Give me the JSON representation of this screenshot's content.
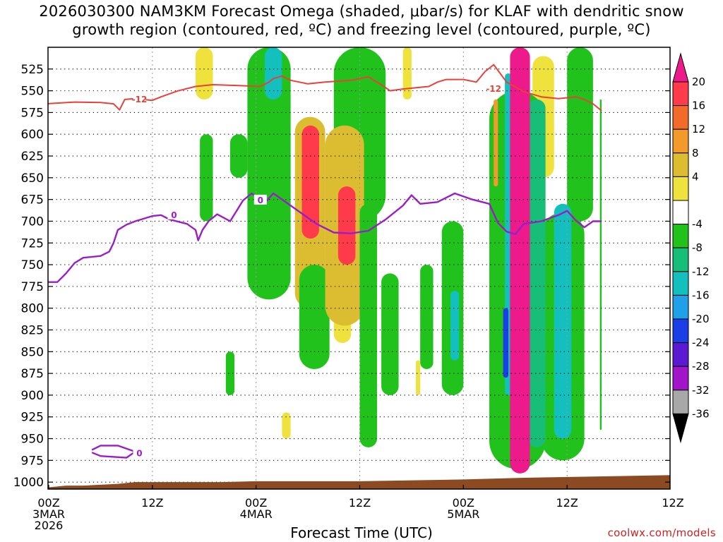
{
  "title_line1": "2026030300 NAM3KM Forecast Omega (shaded, μbar/s) for KLAF with dendritic snow",
  "title_line2": "growth region (contoured, red, ºC) and freezing level (contoured, purple, ºC)",
  "xaxis_title": "Forecast Time (UTC)",
  "credit": "coolwx.com/models",
  "colors": {
    "snow_growth": "#e8413a",
    "freezing": "#9a1ec8",
    "ground": "#8b4a22"
  },
  "chart_data": {
    "type": "heatmap",
    "y_pressure_levels": [
      525,
      550,
      575,
      600,
      625,
      650,
      675,
      700,
      725,
      750,
      775,
      800,
      825,
      850,
      875,
      900,
      925,
      950,
      975,
      1000
    ],
    "y_tick_labels": [
      "525",
      "550",
      "575",
      "600",
      "625",
      "650",
      "675",
      "700",
      "725",
      "750",
      "775",
      "800",
      "825",
      "850",
      "875",
      "900",
      "925",
      "950",
      "975",
      "1000"
    ],
    "ylim_hpa": [
      500,
      1008
    ],
    "x_forecast_hours_range": [
      0,
      72
    ],
    "x_ticks": [
      {
        "hour": 0,
        "l1": "00Z",
        "l2": "3MAR",
        "l3": "2026"
      },
      {
        "hour": 12,
        "l1": "12Z",
        "l2": "",
        "l3": ""
      },
      {
        "hour": 24,
        "l1": "00Z",
        "l2": "4MAR",
        "l3": ""
      },
      {
        "hour": 36,
        "l1": "12Z",
        "l2": "",
        "l3": ""
      },
      {
        "hour": 48,
        "l1": "00Z",
        "l2": "5MAR",
        "l3": ""
      },
      {
        "hour": 60,
        "l1": "12Z",
        "l2": "",
        "l3": ""
      }
    ],
    "colorbar": {
      "labels": [
        "20",
        "16",
        "12",
        "8",
        "4",
        "-4",
        "-8",
        "-12",
        "-16",
        "-20",
        "-24",
        "-28",
        "-32",
        "-36"
      ],
      "bins": [
        {
          "range": "16 to 20",
          "color": "#ff3a4a"
        },
        {
          "range": "12 to 16",
          "color": "#f26b2a"
        },
        {
          "range": "8 to 12",
          "color": "#f39a2c"
        },
        {
          "range": "4 to 8",
          "color": "#dcbc30"
        },
        {
          "range": "0 to 4",
          "color": "#f0e23c"
        },
        {
          "range": "-4 to 4",
          "color": "#ffffff"
        },
        {
          "range": "-8 to -4",
          "color": "#22c21c"
        },
        {
          "range": "-12 to -8",
          "color": "#16be78"
        },
        {
          "range": "-16 to -12",
          "color": "#13c0bd"
        },
        {
          "range": "-20 to -16",
          "color": "#1fa0e8"
        },
        {
          "range": "-24 to -20",
          "color": "#1b3fe6"
        },
        {
          "range": "-28 to -24",
          "color": "#5b1ad2"
        },
        {
          "range": "-32 to -28",
          "color": "#a015c8"
        },
        {
          "range": "-36 to -32",
          "color": "#a8a8a8"
        }
      ],
      "top_extension_color": "#ec1a8a",
      "bottom_extension_color": "#000000"
    },
    "contour_labels": {
      "snow_growth": "-12",
      "freezing": "0"
    },
    "snow_growth_contour": [
      [
        -0.3,
        565
      ],
      [
        3,
        563
      ],
      [
        6,
        563.5
      ],
      [
        7.5,
        565
      ],
      [
        8.2,
        572
      ],
      [
        8.8,
        560
      ],
      [
        10,
        559
      ],
      [
        12,
        561
      ],
      [
        13,
        557
      ],
      [
        15,
        550
      ],
      [
        17,
        545
      ],
      [
        19,
        543
      ],
      [
        22,
        544
      ],
      [
        24.5,
        545
      ],
      [
        25.5,
        540
      ],
      [
        26,
        536
      ],
      [
        27,
        533
      ],
      [
        28,
        538
      ],
      [
        30,
        542
      ],
      [
        32,
        540
      ],
      [
        35,
        538
      ],
      [
        37,
        534
      ],
      [
        38.5,
        543
      ],
      [
        39.5,
        550
      ],
      [
        41,
        548
      ],
      [
        44,
        545
      ],
      [
        45,
        540
      ],
      [
        46,
        537
      ],
      [
        48,
        537
      ],
      [
        49.5,
        540
      ],
      [
        50.5,
        528
      ],
      [
        51.5,
        520
      ],
      [
        53,
        540
      ],
      [
        55,
        551
      ],
      [
        57,
        557
      ],
      [
        59,
        559
      ],
      [
        61,
        557
      ],
      [
        62,
        560
      ],
      [
        63,
        565
      ],
      [
        64,
        573
      ]
    ],
    "freezing_contour": [
      [
        -0.3,
        770
      ],
      [
        1,
        770
      ],
      [
        2,
        760
      ],
      [
        3,
        748
      ],
      [
        4,
        742
      ],
      [
        6,
        740
      ],
      [
        7,
        735
      ],
      [
        7.5,
        725
      ],
      [
        8,
        710
      ],
      [
        9,
        704
      ],
      [
        10,
        700
      ],
      [
        12,
        694
      ],
      [
        13,
        693
      ],
      [
        14,
        698
      ],
      [
        16,
        703
      ],
      [
        17,
        710
      ],
      [
        17.3,
        722
      ],
      [
        17.8,
        710
      ],
      [
        18.5,
        700
      ],
      [
        19.5,
        692
      ],
      [
        21,
        700
      ],
      [
        22.5,
        676
      ],
      [
        23.5,
        668
      ],
      [
        24.3,
        674
      ],
      [
        25,
        679
      ],
      [
        26,
        668
      ],
      [
        27,
        675
      ],
      [
        29,
        689
      ],
      [
        31,
        703
      ],
      [
        33,
        713
      ],
      [
        35,
        714
      ],
      [
        37,
        711
      ],
      [
        39,
        698
      ],
      [
        41,
        682
      ],
      [
        42,
        670
      ],
      [
        43,
        680
      ],
      [
        45,
        678
      ],
      [
        47,
        668
      ],
      [
        49,
        675
      ],
      [
        51,
        680
      ],
      [
        52,
        702
      ],
      [
        53,
        712
      ],
      [
        54,
        715
      ],
      [
        55,
        703
      ],
      [
        57,
        700
      ],
      [
        59,
        693
      ],
      [
        60,
        688
      ],
      [
        61,
        699
      ],
      [
        62,
        707
      ],
      [
        63,
        700
      ],
      [
        64,
        700
      ]
    ],
    "freezing_small_loop": [
      [
        5,
        963
      ],
      [
        6,
        958
      ],
      [
        8,
        958
      ],
      [
        10,
        965
      ],
      [
        9,
        972
      ],
      [
        6,
        970
      ],
      [
        5,
        966
      ]
    ],
    "omega_features": [
      {
        "t0": 53.4,
        "t1": 55.7,
        "p0": 500,
        "p1": 990,
        "value": 28
      },
      {
        "t0": 52.8,
        "t1": 53.6,
        "p0": 530,
        "p1": 900,
        "value": -14
      },
      {
        "t0": 52.6,
        "t1": 53.2,
        "p0": 800,
        "p1": 880,
        "value": -22
      },
      {
        "t0": 55.5,
        "t1": 57.5,
        "p0": 560,
        "p1": 960,
        "value": -10
      },
      {
        "t0": 51,
        "t1": 57.5,
        "p0": 550,
        "p1": 985,
        "value": -6
      },
      {
        "t0": 58.5,
        "t1": 60.5,
        "p0": 680,
        "p1": 950,
        "value": -13
      },
      {
        "t0": 57,
        "t1": 62,
        "p0": 690,
        "p1": 975,
        "value": -6
      },
      {
        "t0": 56,
        "t1": 58.5,
        "p0": 510,
        "p1": 650,
        "value": 5
      },
      {
        "t0": 51.5,
        "t1": 52,
        "p0": 560,
        "p1": 660,
        "value": 10
      },
      {
        "t0": 29.5,
        "t1": 31,
        "p0": 590,
        "p1": 700,
        "value": 12
      },
      {
        "t0": 29.3,
        "t1": 31.3,
        "p0": 590,
        "p1": 720,
        "value": 17
      },
      {
        "t0": 28.5,
        "t1": 32,
        "p0": 580,
        "p1": 800,
        "value": 6
      },
      {
        "t0": 33.5,
        "t1": 35.5,
        "p0": 660,
        "p1": 750,
        "value": 18
      },
      {
        "t0": 32,
        "t1": 36.5,
        "p0": 590,
        "p1": 820,
        "value": 7
      },
      {
        "t0": 33,
        "t1": 35,
        "p0": 620,
        "p1": 840,
        "value": 5
      },
      {
        "t0": 37,
        "t1": 38,
        "p0": 700,
        "p1": 790,
        "value": 5
      },
      {
        "t0": 25,
        "t1": 27,
        "p0": 500,
        "p1": 560,
        "value": -14
      },
      {
        "t0": 23,
        "t1": 28,
        "p0": 500,
        "p1": 790,
        "value": -6
      },
      {
        "t0": 29,
        "t1": 32.5,
        "p0": 750,
        "p1": 870,
        "value": -6
      },
      {
        "t0": 33,
        "t1": 39,
        "p0": 500,
        "p1": 700,
        "value": -6
      },
      {
        "t0": 36,
        "t1": 38,
        "p0": 680,
        "p1": 960,
        "value": -7
      },
      {
        "t0": 38.5,
        "t1": 40.5,
        "p0": 760,
        "p1": 900,
        "value": -6
      },
      {
        "t0": 43,
        "t1": 44.5,
        "p0": 750,
        "p1": 870,
        "value": -6
      },
      {
        "t0": 45.5,
        "t1": 48,
        "p0": 700,
        "p1": 900,
        "value": -6
      },
      {
        "t0": 46.5,
        "t1": 47.5,
        "p0": 780,
        "p1": 860,
        "value": -12
      },
      {
        "t0": 63.8,
        "t1": 64,
        "p0": 560,
        "p1": 940,
        "value": -7
      },
      {
        "t0": 60,
        "t1": 63,
        "p0": 500,
        "p1": 700,
        "value": -6
      },
      {
        "t0": 17,
        "t1": 19,
        "p0": 500,
        "p1": 560,
        "value": 5
      },
      {
        "t0": 17.5,
        "t1": 19,
        "p0": 600,
        "p1": 700,
        "value": -6
      },
      {
        "t0": 21,
        "t1": 23,
        "p0": 600,
        "p1": 650,
        "value": -6
      },
      {
        "t0": 20.5,
        "t1": 21.5,
        "p0": 850,
        "p1": 900,
        "value": -6
      },
      {
        "t0": 27,
        "t1": 28,
        "p0": 920,
        "p1": 950,
        "value": 5
      },
      {
        "t0": 41,
        "t1": 42,
        "p0": 500,
        "p1": 560,
        "value": 5
      },
      {
        "t0": 42.5,
        "t1": 43,
        "p0": 860,
        "p1": 900,
        "value": 5
      },
      {
        "t0": 59,
        "t1": 59.5,
        "p0": 860,
        "p1": 910,
        "value": 5
      }
    ]
  }
}
